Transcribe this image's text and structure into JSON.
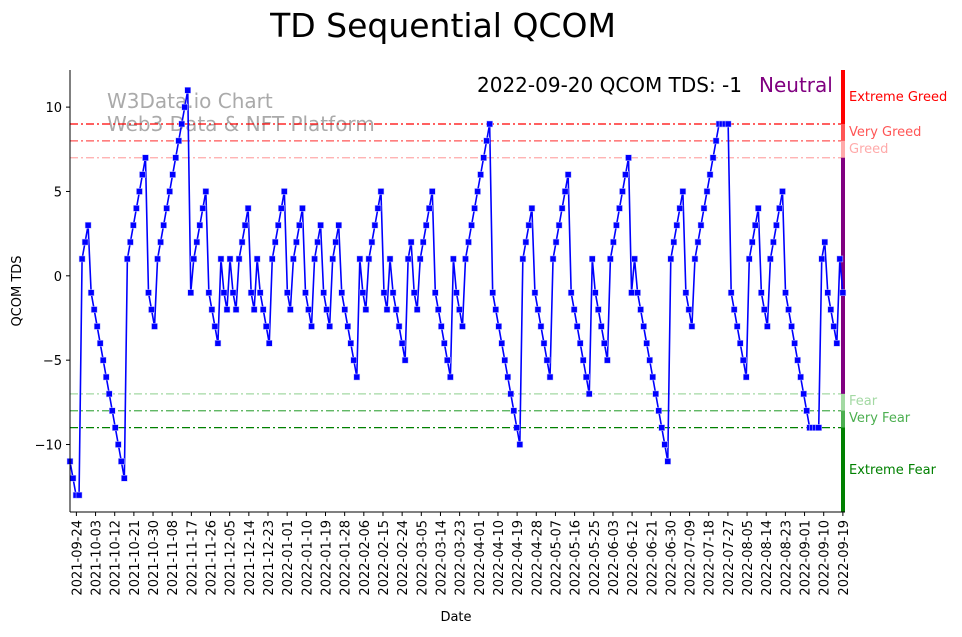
{
  "chart_data": {
    "type": "line",
    "title": "TD Sequential QCOM",
    "xlabel": "Date",
    "ylabel": "QCOM TDS",
    "ylim": [
      -14,
      12.2
    ],
    "yticks": [
      -10,
      -5,
      0,
      5,
      10
    ],
    "x_range": [
      "2021-09-21",
      "2022-09-20"
    ],
    "x_first_point": "2021-09-21",
    "x_last_point": "2022-09-19",
    "xticks": [
      "2021-09-24",
      "2021-10-03",
      "2021-10-12",
      "2021-10-21",
      "2021-10-30",
      "2021-11-08",
      "2021-11-17",
      "2021-11-26",
      "2021-12-05",
      "2021-12-14",
      "2021-12-23",
      "2022-01-01",
      "2022-01-10",
      "2022-01-19",
      "2022-01-28",
      "2022-02-06",
      "2022-02-15",
      "2022-02-24",
      "2022-03-05",
      "2022-03-14",
      "2022-03-23",
      "2022-04-01",
      "2022-04-10",
      "2022-04-19",
      "2022-04-28",
      "2022-05-07",
      "2022-05-16",
      "2022-05-25",
      "2022-06-03",
      "2022-06-12",
      "2022-06-21",
      "2022-06-30",
      "2022-07-09",
      "2022-07-18",
      "2022-07-27",
      "2022-08-05",
      "2022-08-14",
      "2022-08-23",
      "2022-09-01",
      "2022-09-10",
      "2022-09-19"
    ],
    "series": [
      {
        "name": "QCOM TDS",
        "color": "#0000ff",
        "marker": "square",
        "values": [
          -11,
          -12,
          -13,
          -13,
          1,
          2,
          3,
          -1,
          -2,
          -3,
          -4,
          -5,
          -6,
          -7,
          -8,
          -9,
          -10,
          -11,
          -12,
          1,
          2,
          3,
          4,
          5,
          6,
          7,
          -1,
          -2,
          -3,
          1,
          2,
          3,
          4,
          5,
          6,
          7,
          8,
          9,
          10,
          11,
          -1,
          1,
          2,
          3,
          4,
          5,
          -1,
          -2,
          -3,
          -4,
          1,
          -1,
          -2,
          1,
          -1,
          -2,
          1,
          2,
          3,
          4,
          -1,
          -2,
          1,
          -1,
          -2,
          -3,
          -4,
          1,
          2,
          3,
          4,
          5,
          -1,
          -2,
          1,
          2,
          3,
          4,
          -1,
          -2,
          -3,
          1,
          2,
          3,
          -1,
          -2,
          -3,
          1,
          2,
          3,
          -1,
          -2,
          -3,
          -4,
          -5,
          -6,
          1,
          -1,
          -2,
          1,
          2,
          3,
          4,
          5,
          -1,
          -2,
          1,
          -1,
          -2,
          -3,
          -4,
          -5,
          1,
          2,
          -1,
          -2,
          1,
          2,
          3,
          4,
          5,
          -1,
          -2,
          -3,
          -4,
          -5,
          -6,
          1,
          -1,
          -2,
          -3,
          1,
          2,
          3,
          4,
          5,
          6,
          7,
          8,
          9,
          -1,
          -2,
          -3,
          -4,
          -5,
          -6,
          -7,
          -8,
          -9,
          -10,
          1,
          2,
          3,
          4,
          -1,
          -2,
          -3,
          -4,
          -5,
          -6,
          1,
          2,
          3,
          4,
          5,
          6,
          -1,
          -2,
          -3,
          -4,
          -5,
          -6,
          -7,
          1,
          -1,
          -2,
          -3,
          -4,
          -5,
          1,
          2,
          3,
          4,
          5,
          6,
          7,
          -1,
          1,
          -1,
          -2,
          -3,
          -4,
          -5,
          -6,
          -7,
          -8,
          -9,
          -10,
          -11,
          1,
          2,
          3,
          4,
          5,
          -1,
          -2,
          -3,
          1,
          2,
          3,
          4,
          5,
          6,
          7,
          8,
          9,
          9,
          9,
          9,
          -1,
          -2,
          -3,
          -4,
          -5,
          -6,
          1,
          2,
          3,
          4,
          -1,
          -2,
          -3,
          1,
          2,
          3,
          4,
          5,
          -1,
          -2,
          -3,
          -4,
          -5,
          -6,
          -7,
          -8,
          -9,
          -9,
          -9,
          -9,
          1,
          2,
          -1,
          -2,
          -3,
          -4,
          1,
          -1
        ]
      }
    ],
    "reference_lines": [
      {
        "value": 9,
        "label": "Extreme Greed",
        "color": "#ff0000"
      },
      {
        "value": 8,
        "label": "Very Greed",
        "color": "#ff5555"
      },
      {
        "value": 7,
        "label": "Greed",
        "color": "#ffaaaa"
      },
      {
        "value": -7,
        "label": "Fear",
        "color": "#a3d9a3"
      },
      {
        "value": -8,
        "label": "Very Fear",
        "color": "#4caf50"
      },
      {
        "value": -9,
        "label": "Extreme Fear",
        "color": "#008000"
      }
    ],
    "zone_bar": [
      {
        "from": 12.2,
        "to": 9,
        "color": "#ff0000"
      },
      {
        "from": 9,
        "to": 8,
        "color": "#ff5555"
      },
      {
        "from": 8,
        "to": 7,
        "color": "#ffaaaa"
      },
      {
        "from": 7,
        "to": -7,
        "color": "#800080"
      },
      {
        "from": -7,
        "to": -8,
        "color": "#a3d9a3"
      },
      {
        "from": -8,
        "to": -9,
        "color": "#4caf50"
      },
      {
        "from": -9,
        "to": -14,
        "color": "#008000"
      }
    ],
    "annotation": {
      "text": "2022-09-20 QCOM TDS: -1",
      "status": "Neutral",
      "status_color": "#800080"
    },
    "watermark": {
      "line1": "W3Data.io Chart",
      "line2": "Web3 Data & NFT Platform"
    }
  }
}
